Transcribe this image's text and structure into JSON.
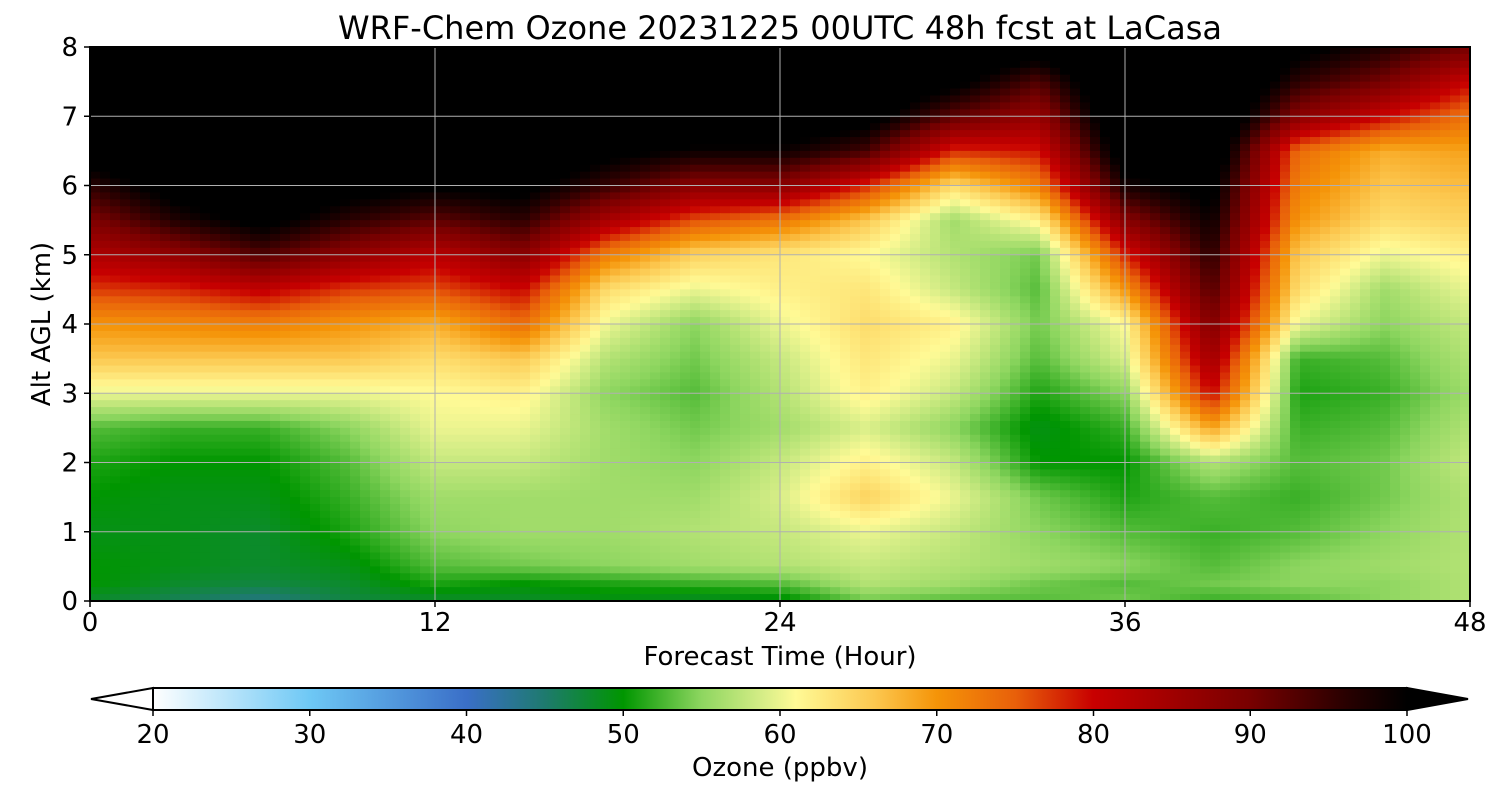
{
  "chart_data": {
    "type": "heatmap",
    "title": "WRF-Chem Ozone  20231225 00UTC 48h fcst at LaCasa",
    "xlabel": "Forecast Time (Hour)",
    "ylabel": "Alt AGL (km)",
    "xlim": [
      0,
      48
    ],
    "ylim": [
      0,
      8
    ],
    "xticks": [
      0,
      12,
      24,
      36,
      48
    ],
    "yticks": [
      0,
      1,
      2,
      3,
      4,
      5,
      6,
      7,
      8
    ],
    "grid": true,
    "colorbar": {
      "label": "Ozone  (ppbv)",
      "range": [
        20,
        100
      ],
      "ticks": [
        20,
        30,
        40,
        50,
        60,
        70,
        80,
        90,
        100
      ],
      "extend": "both",
      "stops": [
        {
          "v": 20,
          "color": "#ffffff"
        },
        {
          "v": 30,
          "color": "#6ec8f5"
        },
        {
          "v": 40,
          "color": "#3a6fc8"
        },
        {
          "v": 45,
          "color": "#1e7a6e"
        },
        {
          "v": 50,
          "color": "#009600"
        },
        {
          "v": 55,
          "color": "#8ed660"
        },
        {
          "v": 59,
          "color": "#d8ee88"
        },
        {
          "v": 61,
          "color": "#fffa96"
        },
        {
          "v": 66,
          "color": "#fcc850"
        },
        {
          "v": 70,
          "color": "#f59408"
        },
        {
          "v": 75,
          "color": "#e8600a"
        },
        {
          "v": 80,
          "color": "#c80000"
        },
        {
          "v": 90,
          "color": "#780000"
        },
        {
          "v": 96,
          "color": "#2a0000"
        },
        {
          "v": 100,
          "color": "#000000"
        }
      ]
    },
    "heights_km": [
      0,
      0.25,
      0.5,
      1,
      1.5,
      2,
      2.5,
      3,
      3.5,
      4,
      4.5,
      5,
      5.5,
      6,
      6.5,
      7,
      7.5,
      8
    ],
    "times_h": [
      0,
      3,
      6,
      9,
      12,
      15,
      18,
      21,
      24,
      27,
      30,
      33,
      36,
      39,
      42,
      45,
      48
    ],
    "ozone_ppbv": [
      [
        48,
        46,
        44,
        47,
        48,
        48,
        49,
        48,
        49,
        54,
        53,
        53,
        54,
        52,
        53,
        55,
        57
      ],
      [
        50,
        48,
        47,
        48,
        51,
        50,
        51,
        52,
        53,
        57,
        56,
        54,
        53,
        54,
        55,
        55,
        57
      ],
      [
        50,
        49,
        48,
        49,
        53,
        54,
        55,
        56,
        57,
        58,
        57,
        56,
        55,
        53,
        55,
        56,
        57
      ],
      [
        49,
        49,
        48,
        51,
        55,
        56,
        56,
        57,
        58,
        60,
        58,
        55,
        53,
        52,
        53,
        55,
        57
      ],
      [
        50,
        49,
        49,
        52,
        56,
        56,
        56,
        56,
        59,
        65,
        60,
        54,
        51,
        53,
        52,
        54,
        57
      ],
      [
        51,
        50,
        50,
        53,
        58,
        58,
        56,
        55,
        58,
        62,
        58,
        50,
        50,
        57,
        53,
        54,
        58
      ],
      [
        53,
        52,
        52,
        55,
        60,
        60,
        56,
        54,
        56,
        59,
        55,
        49,
        52,
        69,
        52,
        53,
        57
      ],
      [
        60,
        60,
        60,
        60,
        61,
        62,
        55,
        53,
        57,
        62,
        58,
        51,
        55,
        80,
        51,
        52,
        56
      ],
      [
        66,
        66,
        66,
        66,
        64,
        66,
        57,
        54,
        58,
        63,
        60,
        53,
        59,
        85,
        52,
        53,
        57
      ],
      [
        70,
        71,
        72,
        70,
        68,
        74,
        60,
        55,
        60,
        64,
        62,
        54,
        61,
        89,
        60,
        55,
        58
      ],
      [
        77,
        78,
        81,
        77,
        76,
        80,
        64,
        60,
        62,
        63,
        58,
        53,
        70,
        93,
        64,
        56,
        60
      ],
      [
        83,
        87,
        93,
        87,
        82,
        88,
        72,
        65,
        63,
        61,
        57,
        54,
        78,
        96,
        66,
        60,
        62
      ],
      [
        89,
        97,
        102,
        96,
        92,
        96,
        84,
        76,
        73,
        66,
        56,
        62,
        88,
        99,
        70,
        64,
        65
      ],
      [
        96,
        103,
        106,
        103,
        101,
        102,
        95,
        88,
        88,
        78,
        64,
        72,
        98,
        102,
        72,
        66,
        67
      ],
      [
        104,
        108,
        108,
        106,
        105,
        106,
        102,
        99,
        99,
        94,
        78,
        79,
        104,
        106,
        74,
        68,
        69
      ],
      [
        108,
        110,
        110,
        109,
        108,
        109,
        107,
        106,
        106,
        103,
        92,
        86,
        107,
        108,
        88,
        80,
        73
      ],
      [
        110,
        111,
        111,
        110,
        110,
        110,
        110,
        109,
        109,
        107,
        102,
        93,
        109,
        110,
        96,
        90,
        80
      ],
      [
        111,
        112,
        112,
        111,
        111,
        111,
        111,
        111,
        111,
        110,
        107,
        104,
        111,
        111,
        102,
        97,
        90
      ]
    ]
  }
}
